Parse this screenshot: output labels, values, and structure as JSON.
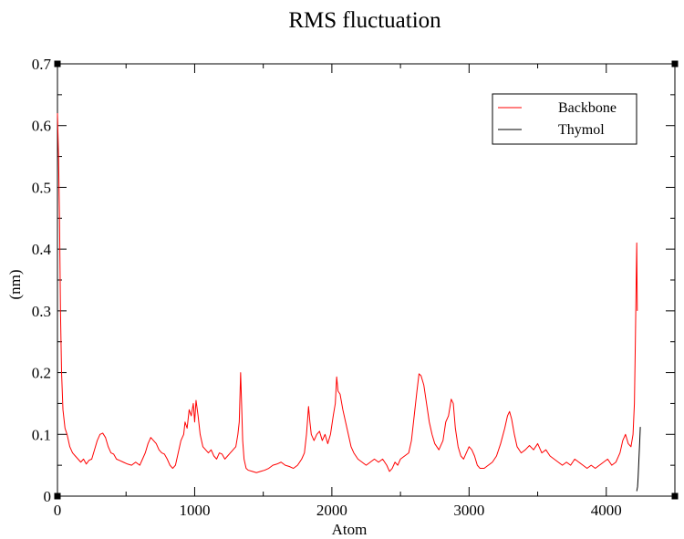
{
  "chart_data": {
    "type": "line",
    "title": "RMS fluctuation",
    "xlabel": "Atom",
    "ylabel": "(nm)",
    "xlim": [
      0,
      4500
    ],
    "ylim": [
      0,
      0.7
    ],
    "x_ticks": [
      0,
      1000,
      2000,
      3000,
      4000
    ],
    "x_tick_labels": [
      "0",
      "1000",
      "2000",
      "3000",
      "4000"
    ],
    "y_ticks": [
      0,
      0.1,
      0.2,
      0.3,
      0.4,
      0.5,
      0.6,
      0.7
    ],
    "y_tick_labels": [
      "0",
      "0.1",
      "0.2",
      "0.3",
      "0.4",
      "0.5",
      "0.6",
      "0.7"
    ],
    "grid": false,
    "legend_position": "top-right",
    "series": [
      {
        "name": "Backbone",
        "color": "#ff0000",
        "points": [
          [
            0,
            0.62
          ],
          [
            8,
            0.55
          ],
          [
            15,
            0.45
          ],
          [
            22,
            0.3
          ],
          [
            30,
            0.2
          ],
          [
            40,
            0.14
          ],
          [
            55,
            0.11
          ],
          [
            70,
            0.1
          ],
          [
            90,
            0.08
          ],
          [
            110,
            0.07
          ],
          [
            130,
            0.065
          ],
          [
            150,
            0.06
          ],
          [
            170,
            0.055
          ],
          [
            190,
            0.06
          ],
          [
            210,
            0.052
          ],
          [
            230,
            0.058
          ],
          [
            250,
            0.06
          ],
          [
            270,
            0.075
          ],
          [
            290,
            0.09
          ],
          [
            310,
            0.1
          ],
          [
            330,
            0.102
          ],
          [
            350,
            0.095
          ],
          [
            370,
            0.08
          ],
          [
            390,
            0.07
          ],
          [
            410,
            0.068
          ],
          [
            430,
            0.06
          ],
          [
            450,
            0.058
          ],
          [
            480,
            0.055
          ],
          [
            510,
            0.052
          ],
          [
            540,
            0.05
          ],
          [
            570,
            0.055
          ],
          [
            600,
            0.05
          ],
          [
            620,
            0.06
          ],
          [
            640,
            0.07
          ],
          [
            660,
            0.085
          ],
          [
            680,
            0.095
          ],
          [
            700,
            0.09
          ],
          [
            720,
            0.085
          ],
          [
            740,
            0.075
          ],
          [
            760,
            0.07
          ],
          [
            780,
            0.068
          ],
          [
            800,
            0.06
          ],
          [
            820,
            0.05
          ],
          [
            840,
            0.045
          ],
          [
            860,
            0.05
          ],
          [
            880,
            0.07
          ],
          [
            900,
            0.09
          ],
          [
            920,
            0.1
          ],
          [
            930,
            0.12
          ],
          [
            945,
            0.11
          ],
          [
            960,
            0.14
          ],
          [
            975,
            0.13
          ],
          [
            990,
            0.15
          ],
          [
            1000,
            0.12
          ],
          [
            1010,
            0.155
          ],
          [
            1025,
            0.13
          ],
          [
            1040,
            0.1
          ],
          [
            1060,
            0.08
          ],
          [
            1080,
            0.075
          ],
          [
            1100,
            0.07
          ],
          [
            1120,
            0.075
          ],
          [
            1140,
            0.065
          ],
          [
            1160,
            0.06
          ],
          [
            1180,
            0.07
          ],
          [
            1200,
            0.068
          ],
          [
            1220,
            0.06
          ],
          [
            1240,
            0.065
          ],
          [
            1260,
            0.07
          ],
          [
            1280,
            0.075
          ],
          [
            1300,
            0.08
          ],
          [
            1315,
            0.1
          ],
          [
            1325,
            0.12
          ],
          [
            1335,
            0.2
          ],
          [
            1342,
            0.15
          ],
          [
            1350,
            0.09
          ],
          [
            1360,
            0.06
          ],
          [
            1375,
            0.045
          ],
          [
            1390,
            0.042
          ],
          [
            1420,
            0.04
          ],
          [
            1450,
            0.038
          ],
          [
            1480,
            0.04
          ],
          [
            1510,
            0.042
          ],
          [
            1540,
            0.045
          ],
          [
            1570,
            0.05
          ],
          [
            1600,
            0.052
          ],
          [
            1630,
            0.055
          ],
          [
            1660,
            0.05
          ],
          [
            1690,
            0.048
          ],
          [
            1720,
            0.045
          ],
          [
            1750,
            0.05
          ],
          [
            1780,
            0.06
          ],
          [
            1800,
            0.07
          ],
          [
            1815,
            0.1
          ],
          [
            1830,
            0.145
          ],
          [
            1840,
            0.12
          ],
          [
            1850,
            0.1
          ],
          [
            1870,
            0.09
          ],
          [
            1890,
            0.1
          ],
          [
            1910,
            0.105
          ],
          [
            1930,
            0.09
          ],
          [
            1950,
            0.1
          ],
          [
            1970,
            0.085
          ],
          [
            1990,
            0.1
          ],
          [
            2010,
            0.13
          ],
          [
            2025,
            0.15
          ],
          [
            2035,
            0.193
          ],
          [
            2045,
            0.17
          ],
          [
            2060,
            0.165
          ],
          [
            2080,
            0.14
          ],
          [
            2100,
            0.12
          ],
          [
            2120,
            0.1
          ],
          [
            2140,
            0.08
          ],
          [
            2160,
            0.07
          ],
          [
            2190,
            0.06
          ],
          [
            2220,
            0.055
          ],
          [
            2250,
            0.05
          ],
          [
            2280,
            0.055
          ],
          [
            2310,
            0.06
          ],
          [
            2340,
            0.055
          ],
          [
            2370,
            0.06
          ],
          [
            2400,
            0.05
          ],
          [
            2420,
            0.04
          ],
          [
            2440,
            0.045
          ],
          [
            2460,
            0.055
          ],
          [
            2480,
            0.05
          ],
          [
            2500,
            0.06
          ],
          [
            2530,
            0.065
          ],
          [
            2560,
            0.07
          ],
          [
            2580,
            0.09
          ],
          [
            2600,
            0.13
          ],
          [
            2620,
            0.17
          ],
          [
            2635,
            0.198
          ],
          [
            2650,
            0.195
          ],
          [
            2670,
            0.18
          ],
          [
            2690,
            0.15
          ],
          [
            2710,
            0.12
          ],
          [
            2730,
            0.1
          ],
          [
            2750,
            0.085
          ],
          [
            2780,
            0.075
          ],
          [
            2810,
            0.09
          ],
          [
            2830,
            0.12
          ],
          [
            2850,
            0.13
          ],
          [
            2870,
            0.157
          ],
          [
            2885,
            0.15
          ],
          [
            2900,
            0.11
          ],
          [
            2920,
            0.08
          ],
          [
            2940,
            0.065
          ],
          [
            2960,
            0.06
          ],
          [
            2980,
            0.07
          ],
          [
            3000,
            0.08
          ],
          [
            3020,
            0.075
          ],
          [
            3040,
            0.065
          ],
          [
            3060,
            0.05
          ],
          [
            3080,
            0.045
          ],
          [
            3110,
            0.045
          ],
          [
            3140,
            0.05
          ],
          [
            3170,
            0.055
          ],
          [
            3200,
            0.065
          ],
          [
            3230,
            0.085
          ],
          [
            3260,
            0.11
          ],
          [
            3280,
            0.13
          ],
          [
            3295,
            0.137
          ],
          [
            3310,
            0.125
          ],
          [
            3330,
            0.1
          ],
          [
            3350,
            0.08
          ],
          [
            3380,
            0.07
          ],
          [
            3410,
            0.075
          ],
          [
            3440,
            0.082
          ],
          [
            3470,
            0.075
          ],
          [
            3500,
            0.085
          ],
          [
            3530,
            0.07
          ],
          [
            3560,
            0.075
          ],
          [
            3590,
            0.065
          ],
          [
            3620,
            0.06
          ],
          [
            3650,
            0.055
          ],
          [
            3680,
            0.05
          ],
          [
            3710,
            0.055
          ],
          [
            3740,
            0.05
          ],
          [
            3770,
            0.06
          ],
          [
            3800,
            0.055
          ],
          [
            3830,
            0.05
          ],
          [
            3860,
            0.045
          ],
          [
            3890,
            0.05
          ],
          [
            3920,
            0.045
          ],
          [
            3950,
            0.05
          ],
          [
            3980,
            0.055
          ],
          [
            4010,
            0.06
          ],
          [
            4040,
            0.05
          ],
          [
            4070,
            0.055
          ],
          [
            4100,
            0.07
          ],
          [
            4120,
            0.09
          ],
          [
            4140,
            0.1
          ],
          [
            4160,
            0.085
          ],
          [
            4180,
            0.08
          ],
          [
            4195,
            0.1
          ],
          [
            4205,
            0.15
          ],
          [
            4212,
            0.25
          ],
          [
            4218,
            0.35
          ],
          [
            4222,
            0.41
          ],
          [
            4226,
            0.3
          ]
        ]
      },
      {
        "name": "Thymol",
        "color": "#000000",
        "points": [
          [
            4222,
            0.008
          ],
          [
            4228,
            0.015
          ],
          [
            4232,
            0.03
          ],
          [
            4236,
            0.05
          ],
          [
            4240,
            0.07
          ],
          [
            4244,
            0.09
          ],
          [
            4248,
            0.112
          ]
        ]
      }
    ]
  }
}
